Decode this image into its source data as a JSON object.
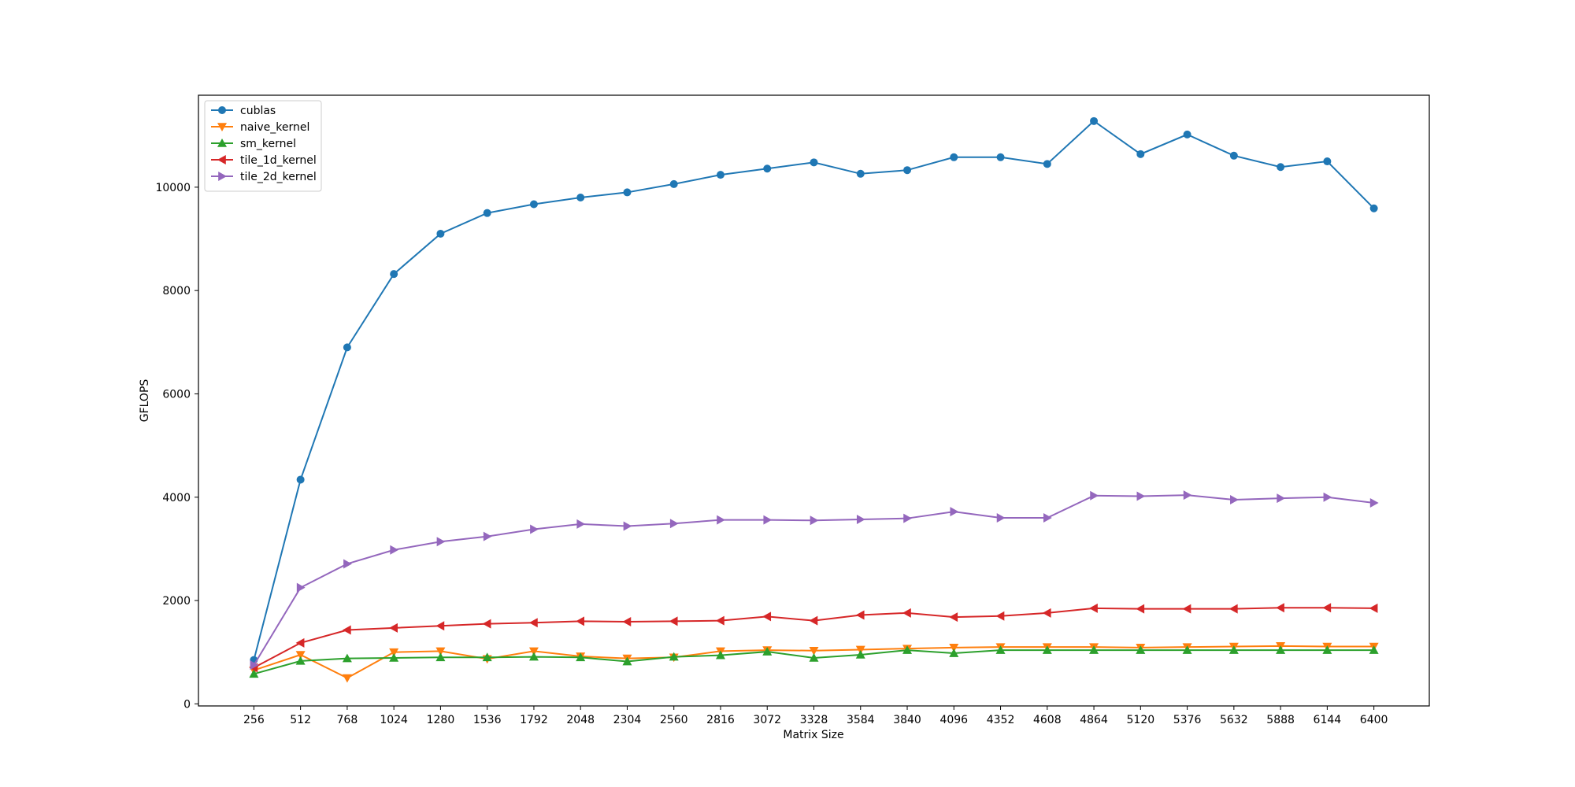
{
  "chart_data": {
    "type": "line",
    "xlabel": "Matrix Size",
    "ylabel": "GFLOPS",
    "x": [
      256,
      512,
      768,
      1024,
      1280,
      1536,
      1792,
      2048,
      2304,
      2560,
      2816,
      3072,
      3328,
      3584,
      3840,
      4096,
      4352,
      4608,
      4864,
      5120,
      5376,
      5632,
      5888,
      6144,
      6400
    ],
    "yticks": [
      0,
      2000,
      4000,
      6000,
      8000,
      10000
    ],
    "xlim": [
      -48,
      6704
    ],
    "ylim": [
      -40,
      11780
    ],
    "grid": false,
    "legend_position": "upper-left",
    "series": [
      {
        "name": "cublas",
        "color": "#1f77b4",
        "marker": "circle",
        "values": [
          850,
          4340,
          6900,
          8320,
          9100,
          9500,
          9670,
          9800,
          9900,
          10060,
          10240,
          10360,
          10480,
          10260,
          10330,
          10580,
          10580,
          10450,
          11280,
          10640,
          11020,
          10610,
          10390,
          10500,
          9590
        ]
      },
      {
        "name": "naive_kernel",
        "color": "#ff7f0e",
        "marker": "triangle-down",
        "values": [
          650,
          950,
          500,
          1000,
          1020,
          870,
          1020,
          920,
          880,
          900,
          1020,
          1040,
          1030,
          1050,
          1070,
          1090,
          1100,
          1100,
          1100,
          1090,
          1100,
          1110,
          1120,
          1110,
          1110
        ]
      },
      {
        "name": "sm_kernel",
        "color": "#2ca02c",
        "marker": "triangle-up",
        "values": [
          580,
          830,
          880,
          890,
          900,
          900,
          910,
          900,
          820,
          910,
          940,
          1010,
          890,
          950,
          1040,
          980,
          1040,
          1040,
          1040,
          1040,
          1040,
          1040,
          1040,
          1040,
          1040
        ]
      },
      {
        "name": "tile_1d_kernel",
        "color": "#d62728",
        "marker": "triangle-left",
        "values": [
          700,
          1180,
          1430,
          1470,
          1510,
          1550,
          1570,
          1600,
          1590,
          1600,
          1610,
          1690,
          1610,
          1720,
          1760,
          1680,
          1700,
          1760,
          1850,
          1840,
          1840,
          1840,
          1860,
          1860,
          1850
        ]
      },
      {
        "name": "tile_2d_kernel",
        "color": "#9467bd",
        "marker": "triangle-right",
        "values": [
          750,
          2250,
          2710,
          2980,
          3140,
          3240,
          3380,
          3480,
          3440,
          3490,
          3560,
          3560,
          3550,
          3570,
          3590,
          3720,
          3600,
          3600,
          4030,
          4020,
          4040,
          3950,
          3980,
          4000,
          3890
        ]
      }
    ]
  }
}
